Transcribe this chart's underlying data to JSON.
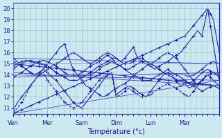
{
  "background_color": "#cce8f0",
  "grid_color": "#99b8cc",
  "line_color": "#1a1aaa",
  "xlabel": "Température (°c)",
  "ylim": [
    10.5,
    20.5
  ],
  "yticks": [
    11,
    12,
    13,
    14,
    15,
    16,
    17,
    18,
    19,
    20
  ],
  "day_labels": [
    "Ven",
    "Mer",
    "Sam",
    "Dim",
    "Lun",
    "Mar"
  ],
  "day_positions": [
    0,
    24,
    48,
    72,
    96,
    120
  ],
  "total_points": 145,
  "series": [
    {
      "name": "line1",
      "style": "dashed",
      "points": [
        [
          0,
          10.5
        ],
        [
          3,
          11.0
        ],
        [
          6,
          11.5
        ],
        [
          9,
          12.2
        ],
        [
          12,
          13.0
        ],
        [
          15,
          13.5
        ],
        [
          18,
          14.0
        ],
        [
          21,
          14.2
        ],
        [
          24,
          13.5
        ],
        [
          27,
          13.0
        ],
        [
          30,
          12.5
        ],
        [
          33,
          12.0
        ],
        [
          36,
          11.5
        ],
        [
          39,
          11.2
        ],
        [
          42,
          11.0
        ],
        [
          45,
          11.2
        ],
        [
          48,
          11.5
        ],
        [
          51,
          12.0
        ],
        [
          54,
          12.5
        ],
        [
          57,
          13.0
        ],
        [
          60,
          13.5
        ],
        [
          63,
          13.8
        ],
        [
          66,
          14.0
        ],
        [
          69,
          14.0
        ],
        [
          72,
          12.0
        ],
        [
          75,
          12.2
        ],
        [
          78,
          12.5
        ],
        [
          81,
          12.8
        ],
        [
          84,
          12.5
        ],
        [
          87,
          12.2
        ],
        [
          90,
          12.0
        ],
        [
          93,
          12.0
        ],
        [
          96,
          12.2
        ],
        [
          99,
          12.5
        ],
        [
          102,
          12.8
        ],
        [
          105,
          13.0
        ],
        [
          108,
          13.2
        ],
        [
          111,
          13.0
        ],
        [
          114,
          12.8
        ],
        [
          117,
          12.5
        ],
        [
          120,
          12.2
        ],
        [
          123,
          12.0
        ],
        [
          126,
          12.5
        ],
        [
          129,
          13.0
        ],
        [
          132,
          13.5
        ],
        [
          136,
          14.2
        ],
        [
          140,
          14.0
        ],
        [
          144,
          14.2
        ]
      ]
    },
    {
      "name": "line2",
      "style": "solid",
      "points": [
        [
          0,
          10.8
        ],
        [
          3,
          11.5
        ],
        [
          6,
          12.0
        ],
        [
          9,
          12.5
        ],
        [
          12,
          13.0
        ],
        [
          15,
          13.5
        ],
        [
          18,
          14.0
        ],
        [
          21,
          14.5
        ],
        [
          24,
          14.2
        ],
        [
          27,
          13.8
        ],
        [
          30,
          13.5
        ],
        [
          33,
          13.0
        ],
        [
          36,
          12.5
        ],
        [
          39,
          12.0
        ],
        [
          42,
          11.5
        ],
        [
          45,
          11.2
        ],
        [
          48,
          11.0
        ],
        [
          51,
          11.5
        ],
        [
          54,
          12.0
        ],
        [
          57,
          12.5
        ],
        [
          60,
          13.0
        ],
        [
          63,
          13.5
        ],
        [
          66,
          14.0
        ],
        [
          69,
          14.2
        ],
        [
          72,
          12.2
        ],
        [
          75,
          12.5
        ],
        [
          78,
          12.8
        ],
        [
          81,
          13.0
        ],
        [
          84,
          12.8
        ],
        [
          87,
          12.5
        ],
        [
          90,
          12.2
        ],
        [
          93,
          12.0
        ],
        [
          96,
          12.5
        ],
        [
          99,
          13.0
        ],
        [
          102,
          13.5
        ],
        [
          105,
          14.0
        ],
        [
          108,
          14.2
        ],
        [
          111,
          14.0
        ],
        [
          114,
          13.5
        ],
        [
          117,
          13.0
        ],
        [
          120,
          13.2
        ],
        [
          123,
          12.8
        ],
        [
          126,
          13.0
        ],
        [
          129,
          13.2
        ],
        [
          132,
          13.5
        ],
        [
          136,
          14.0
        ],
        [
          140,
          14.2
        ],
        [
          144,
          14.0
        ]
      ]
    },
    {
      "name": "line3",
      "style": "solid",
      "points": [
        [
          0,
          13.8
        ],
        [
          3,
          14.0
        ],
        [
          6,
          14.2
        ],
        [
          9,
          14.5
        ],
        [
          12,
          14.8
        ],
        [
          15,
          15.0
        ],
        [
          18,
          15.2
        ],
        [
          21,
          15.3
        ],
        [
          24,
          15.2
        ],
        [
          27,
          15.0
        ],
        [
          30,
          14.8
        ],
        [
          33,
          14.5
        ],
        [
          36,
          14.2
        ],
        [
          39,
          14.0
        ],
        [
          42,
          14.0
        ],
        [
          45,
          14.0
        ],
        [
          48,
          14.0
        ],
        [
          51,
          14.0
        ],
        [
          54,
          14.0
        ],
        [
          57,
          14.2
        ],
        [
          60,
          14.5
        ],
        [
          63,
          14.8
        ],
        [
          66,
          15.0
        ],
        [
          69,
          15.2
        ],
        [
          72,
          15.0
        ],
        [
          75,
          14.8
        ],
        [
          78,
          14.5
        ],
        [
          81,
          14.2
        ],
        [
          84,
          14.0
        ],
        [
          87,
          13.8
        ],
        [
          90,
          13.5
        ],
        [
          93,
          13.5
        ],
        [
          96,
          13.5
        ],
        [
          99,
          13.8
        ],
        [
          102,
          14.0
        ],
        [
          105,
          14.2
        ],
        [
          108,
          14.5
        ],
        [
          111,
          14.2
        ],
        [
          114,
          14.0
        ],
        [
          117,
          13.8
        ],
        [
          120,
          13.5
        ],
        [
          123,
          13.2
        ],
        [
          126,
          13.0
        ],
        [
          129,
          12.8
        ],
        [
          132,
          12.5
        ],
        [
          136,
          12.8
        ],
        [
          140,
          13.0
        ],
        [
          144,
          12.8
        ]
      ]
    },
    {
      "name": "line4",
      "style": "solid",
      "points": [
        [
          0,
          14.5
        ],
        [
          3,
          14.8
        ],
        [
          6,
          15.0
        ],
        [
          9,
          15.2
        ],
        [
          12,
          15.3
        ],
        [
          15,
          15.2
        ],
        [
          18,
          15.1
        ],
        [
          21,
          15.0
        ],
        [
          24,
          14.8
        ],
        [
          27,
          14.5
        ],
        [
          30,
          14.2
        ],
        [
          33,
          14.0
        ],
        [
          36,
          13.8
        ],
        [
          39,
          13.5
        ],
        [
          42,
          13.5
        ],
        [
          45,
          13.5
        ],
        [
          48,
          13.8
        ],
        [
          51,
          14.0
        ],
        [
          54,
          14.2
        ],
        [
          57,
          14.5
        ],
        [
          60,
          14.8
        ],
        [
          63,
          15.0
        ],
        [
          66,
          15.2
        ],
        [
          69,
          15.5
        ],
        [
          72,
          15.0
        ],
        [
          75,
          14.8
        ],
        [
          78,
          14.5
        ],
        [
          81,
          14.5
        ],
        [
          84,
          14.8
        ],
        [
          87,
          15.0
        ],
        [
          90,
          15.2
        ],
        [
          93,
          15.2
        ],
        [
          96,
          15.0
        ],
        [
          99,
          14.8
        ],
        [
          102,
          14.5
        ],
        [
          105,
          14.2
        ],
        [
          108,
          14.0
        ],
        [
          111,
          13.8
        ],
        [
          114,
          13.5
        ],
        [
          117,
          13.5
        ],
        [
          120,
          13.5
        ],
        [
          123,
          13.2
        ],
        [
          126,
          13.5
        ],
        [
          129,
          13.8
        ],
        [
          132,
          14.2
        ],
        [
          136,
          14.5
        ],
        [
          140,
          14.2
        ],
        [
          144,
          13.8
        ]
      ]
    },
    {
      "name": "line5",
      "style": "solid",
      "points": [
        [
          0,
          14.8
        ],
        [
          3,
          15.0
        ],
        [
          6,
          15.2
        ],
        [
          9,
          15.3
        ],
        [
          12,
          15.2
        ],
        [
          15,
          15.1
        ],
        [
          18,
          15.0
        ],
        [
          21,
          14.9
        ],
        [
          24,
          14.8
        ],
        [
          27,
          14.5
        ],
        [
          30,
          14.2
        ],
        [
          33,
          14.0
        ],
        [
          36,
          14.0
        ],
        [
          39,
          14.0
        ],
        [
          42,
          14.0
        ],
        [
          45,
          14.0
        ],
        [
          48,
          14.2
        ],
        [
          51,
          14.5
        ],
        [
          54,
          14.8
        ],
        [
          57,
          15.0
        ],
        [
          60,
          15.2
        ],
        [
          63,
          15.5
        ],
        [
          66,
          15.8
        ],
        [
          69,
          15.5
        ],
        [
          72,
          15.5
        ],
        [
          75,
          15.2
        ],
        [
          78,
          15.0
        ],
        [
          81,
          15.0
        ],
        [
          84,
          15.2
        ],
        [
          87,
          15.5
        ],
        [
          90,
          15.5
        ],
        [
          93,
          15.2
        ],
        [
          96,
          15.0
        ],
        [
          99,
          14.8
        ],
        [
          102,
          14.5
        ],
        [
          105,
          14.2
        ],
        [
          108,
          14.0
        ],
        [
          111,
          14.0
        ],
        [
          114,
          14.0
        ],
        [
          117,
          14.0
        ],
        [
          120,
          14.0
        ],
        [
          123,
          13.8
        ],
        [
          126,
          14.0
        ],
        [
          129,
          14.2
        ],
        [
          132,
          14.5
        ],
        [
          136,
          15.0
        ],
        [
          140,
          15.2
        ],
        [
          144,
          15.0
        ]
      ]
    },
    {
      "name": "line6_spike",
      "style": "solid",
      "points": [
        [
          0,
          15.2
        ],
        [
          3,
          15.0
        ],
        [
          6,
          14.8
        ],
        [
          9,
          14.5
        ],
        [
          12,
          14.2
        ],
        [
          15,
          14.0
        ],
        [
          18,
          14.0
        ],
        [
          21,
          14.2
        ],
        [
          24,
          14.5
        ],
        [
          27,
          14.8
        ],
        [
          30,
          15.0
        ],
        [
          33,
          15.2
        ],
        [
          36,
          15.5
        ],
        [
          39,
          15.8
        ],
        [
          42,
          16.0
        ],
        [
          45,
          15.8
        ],
        [
          48,
          15.5
        ],
        [
          51,
          15.2
        ],
        [
          54,
          15.0
        ],
        [
          57,
          15.2
        ],
        [
          60,
          15.5
        ],
        [
          63,
          15.8
        ],
        [
          66,
          16.0
        ],
        [
          69,
          15.8
        ],
        [
          72,
          15.5
        ],
        [
          75,
          15.2
        ],
        [
          78,
          15.5
        ],
        [
          81,
          16.0
        ],
        [
          84,
          16.5
        ],
        [
          87,
          15.5
        ],
        [
          90,
          15.2
        ],
        [
          93,
          15.0
        ],
        [
          96,
          14.8
        ],
        [
          99,
          14.5
        ],
        [
          102,
          14.8
        ],
        [
          105,
          15.0
        ],
        [
          108,
          15.2
        ],
        [
          111,
          15.5
        ],
        [
          114,
          15.8
        ],
        [
          117,
          16.0
        ],
        [
          120,
          16.5
        ],
        [
          123,
          17.0
        ],
        [
          126,
          17.5
        ],
        [
          129,
          18.0
        ],
        [
          132,
          17.5
        ],
        [
          136,
          20.0
        ],
        [
          140,
          19.0
        ],
        [
          144,
          16.0
        ]
      ]
    },
    {
      "name": "line7_high",
      "style": "solid",
      "points": [
        [
          0,
          15.5
        ],
        [
          3,
          15.2
        ],
        [
          6,
          14.8
        ],
        [
          9,
          14.5
        ],
        [
          12,
          14.2
        ],
        [
          15,
          14.0
        ],
        [
          18,
          14.2
        ],
        [
          21,
          14.5
        ],
        [
          24,
          15.0
        ],
        [
          27,
          15.5
        ],
        [
          30,
          16.0
        ],
        [
          33,
          16.5
        ],
        [
          36,
          16.8
        ],
        [
          39,
          15.5
        ],
        [
          42,
          14.5
        ],
        [
          45,
          14.0
        ],
        [
          48,
          13.5
        ],
        [
          51,
          13.0
        ],
        [
          54,
          12.8
        ],
        [
          57,
          12.5
        ],
        [
          60,
          12.2
        ],
        [
          63,
          12.0
        ],
        [
          66,
          12.2
        ],
        [
          69,
          12.5
        ],
        [
          72,
          12.8
        ],
        [
          75,
          13.0
        ],
        [
          78,
          13.2
        ],
        [
          81,
          13.5
        ],
        [
          84,
          14.0
        ],
        [
          87,
          14.2
        ],
        [
          90,
          14.5
        ],
        [
          93,
          14.8
        ],
        [
          96,
          15.0
        ],
        [
          99,
          15.2
        ],
        [
          102,
          15.5
        ],
        [
          105,
          15.8
        ],
        [
          108,
          16.0
        ],
        [
          111,
          15.8
        ],
        [
          114,
          15.5
        ],
        [
          117,
          15.0
        ],
        [
          120,
          14.5
        ],
        [
          123,
          14.0
        ],
        [
          126,
          13.5
        ],
        [
          129,
          13.0
        ],
        [
          132,
          13.5
        ],
        [
          136,
          14.0
        ],
        [
          140,
          13.5
        ],
        [
          144,
          13.0
        ]
      ]
    },
    {
      "name": "line8_long_diagonal",
      "style": "solid",
      "points": [
        [
          0,
          10.5
        ],
        [
          120,
          17.5
        ],
        [
          136,
          20.0
        ],
        [
          144,
          13.5
        ]
      ]
    },
    {
      "name": "line9_diagonal",
      "style": "solid",
      "points": [
        [
          0,
          15.0
        ],
        [
          144,
          13.0
        ]
      ]
    }
  ]
}
